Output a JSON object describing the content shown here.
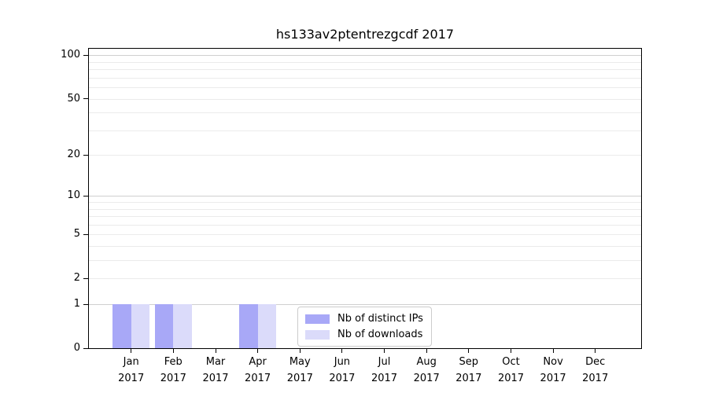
{
  "chart_data": {
    "type": "bar",
    "title": "hs133av2ptentrezgcdf 2017",
    "categories": [
      "Jan",
      "Feb",
      "Mar",
      "Apr",
      "May",
      "Jun",
      "Jul",
      "Aug",
      "Sep",
      "Oct",
      "Nov",
      "Dec"
    ],
    "x_year": "2017",
    "series": [
      {
        "name": "Nb of distinct IPs",
        "color": "#a8a8f7",
        "values": [
          1,
          1,
          0,
          1,
          0,
          0,
          0,
          0,
          0,
          0,
          0,
          0
        ]
      },
      {
        "name": "Nb of downloads",
        "color": "#dbdbfa",
        "values": [
          1,
          1,
          0,
          1,
          0,
          0,
          0,
          0,
          0,
          0,
          0,
          0
        ]
      }
    ],
    "yscale": "log1p",
    "ylim": [
      0,
      111
    ],
    "y_ticks": [
      0,
      1,
      2,
      5,
      10,
      20,
      50,
      100
    ],
    "grid_major": [
      1,
      10,
      100
    ],
    "grid_minor": [
      2,
      3,
      4,
      6,
      7,
      8,
      9,
      20,
      30,
      40,
      60,
      70,
      80,
      90,
      5,
      50
    ],
    "legend_position": "bottom-center",
    "colors": {
      "grid_major": "#cfcfcf",
      "grid_minor": "#ebebeb",
      "spine": "#000000",
      "text": "#000000",
      "background": "#ffffff"
    }
  }
}
